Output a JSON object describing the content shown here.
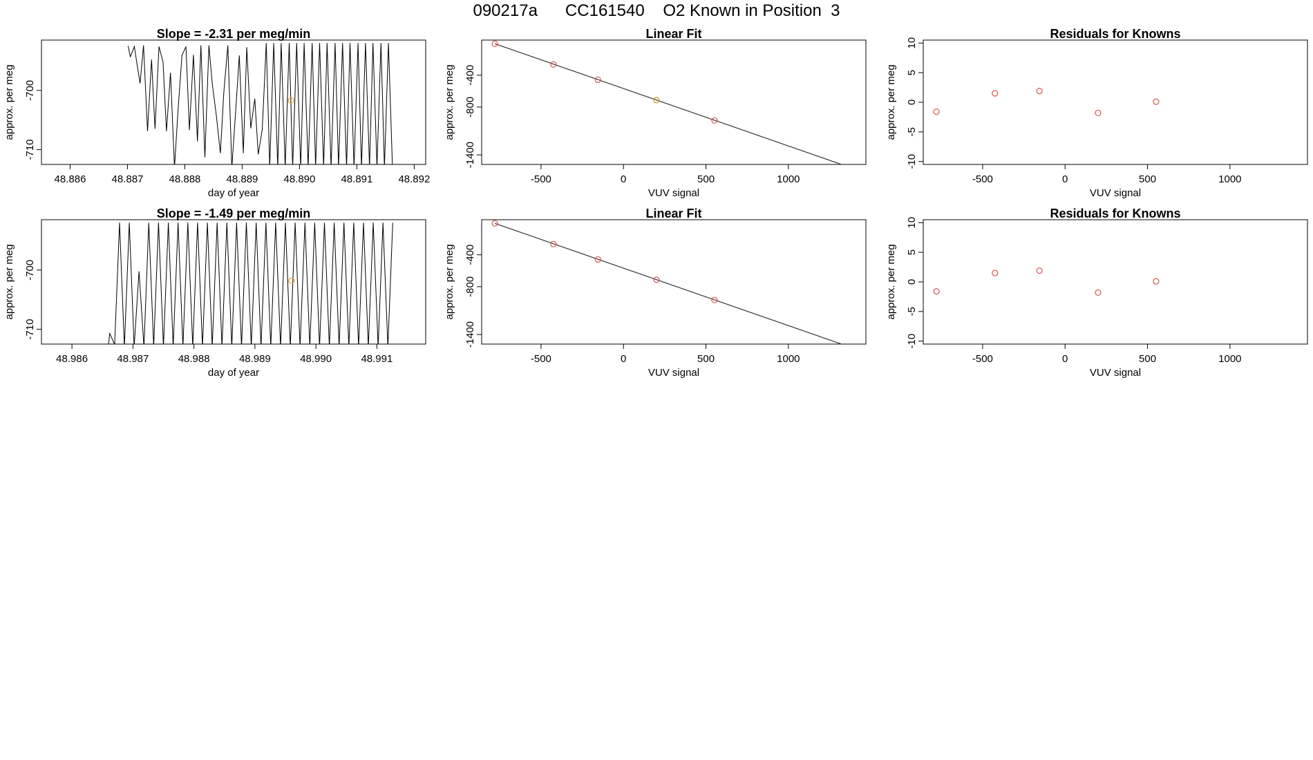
{
  "page": {
    "title": "090217a      CC161540    O2 Known in Position  3"
  },
  "chart_data": [
    {
      "type": "line",
      "title": "Slope =  -2.31  per meg/min",
      "xlabel": "day of year",
      "ylabel": "approx. per meg",
      "xlim": [
        48.8855,
        48.8922
      ],
      "ylim": [
        -712.5,
        -691.5
      ],
      "xticks": [
        48.886,
        48.887,
        48.888,
        48.889,
        48.89,
        48.891,
        48.892
      ],
      "xtick_labels": [
        "48.886",
        "48.887",
        "48.888",
        "48.889",
        "48.890",
        "48.891",
        "48.892"
      ],
      "yticks": [
        -700,
        -710
      ],
      "ytick_labels": [
        "-700",
        "-710"
      ],
      "series": [
        {
          "color": "#000000",
          "x": [
            48.88701,
            48.88705,
            48.88712,
            48.88718,
            48.88722,
            48.88728,
            48.88735,
            48.88742,
            48.88748,
            48.88755,
            48.88762,
            48.88768,
            48.88775,
            48.88782,
            48.88788,
            48.88795,
            48.88802,
            48.88808,
            48.88815,
            48.88822,
            48.88828,
            48.88835,
            48.88842,
            48.88848,
            48.88855,
            48.88862,
            48.88868,
            48.88875,
            48.88882,
            48.88888,
            48.88895,
            48.88902,
            48.88908,
            48.88915,
            48.88922,
            48.88928,
            48.88935,
            48.88942,
            48.88948,
            48.88955,
            48.88962,
            48.88968,
            48.88975,
            48.88982,
            48.88988,
            48.88995,
            48.89002,
            48.89008,
            48.89015,
            48.89022,
            48.89028,
            48.89035,
            48.89042,
            48.89048,
            48.89055,
            48.89062,
            48.89068,
            48.89075,
            48.89082,
            48.89088,
            48.89095,
            48.89102,
            48.89108,
            48.89115,
            48.89122,
            48.89128,
            48.89135,
            48.89142,
            48.89148,
            48.89155,
            48.89162
          ],
          "y": [
            -692.5,
            -694.3,
            -692.6,
            -696.4,
            -698.8,
            -692.4,
            -706.9,
            -694.8,
            -706.5,
            -692.6,
            -695.2,
            -706.9,
            -697.0,
            -713.0,
            -703.6,
            -694.1,
            -692.6,
            -706.7,
            -694.0,
            -708.6,
            -692.4,
            -711.3,
            -692.4,
            -699.0,
            -704.3,
            -710.6,
            -700.3,
            -692.4,
            -713.0,
            -704.4,
            -694.1,
            -710.6,
            -692.7,
            -706.4,
            -701.4,
            -710.8,
            -706.6,
            -692.0,
            -713.0,
            -692.0,
            -713.0,
            -692.0,
            -713.0,
            -692.0,
            -713.0,
            -692.0,
            -713.0,
            -692.0,
            -713.0,
            -692.0,
            -713.0,
            -692.0,
            -713.0,
            -692.0,
            -713.0,
            -692.0,
            -713.0,
            -692.0,
            -713.0,
            -692.0,
            -713.0,
            -692.0,
            -713.0,
            -692.0,
            -713.0,
            -692.0,
            -713.0,
            -692.0,
            -713.0,
            -692.0,
            -713.0
          ]
        }
      ],
      "marker": {
        "x": 48.88985,
        "y": -701.7,
        "color": "#e8a33a"
      }
    },
    {
      "type": "scatter",
      "title": "Linear Fit",
      "xlabel": "VUV signal",
      "ylabel": "approx. per meg",
      "xlim": [
        -860,
        1470
      ],
      "ylim": [
        -1520,
        40
      ],
      "xticks": [
        -500,
        0,
        500,
        1000
      ],
      "xtick_labels": [
        "-500",
        "0",
        "500",
        "1000"
      ],
      "yticks": [
        -400,
        -800,
        -1400
      ],
      "ytick_labels": [
        "-400",
        "-800",
        "-1400"
      ],
      "points": [
        {
          "x": -780,
          "y": -6,
          "color": "#d9534f"
        },
        {
          "x": -425,
          "y": -266,
          "color": "#d9534f"
        },
        {
          "x": -155,
          "y": -458,
          "color": "#d9534f"
        },
        {
          "x": 200,
          "y": -713,
          "color": "#c89a2e"
        },
        {
          "x": 552,
          "y": -968,
          "color": "#d9534f"
        }
      ],
      "fit_line": {
        "x": [
          -780,
          1380
        ],
        "y": [
          -6,
          -1562
        ],
        "color": "#333333"
      }
    },
    {
      "type": "scatter",
      "title": "Residuals for Knowns",
      "xlabel": "VUV signal",
      "ylabel": "approx. per meg",
      "xlim": [
        -860,
        1470
      ],
      "ylim": [
        -10.5,
        10.5
      ],
      "xticks": [
        -500,
        0,
        500,
        1000
      ],
      "xtick_labels": [
        "-500",
        "0",
        "500",
        "1000"
      ],
      "yticks": [
        10,
        5,
        0,
        -5,
        -10
      ],
      "ytick_labels": [
        "10",
        "5",
        "0",
        "-5",
        "-10"
      ],
      "points": [
        {
          "x": -780,
          "y": -1.6,
          "color": "#d9534f"
        },
        {
          "x": -425,
          "y": 1.5,
          "color": "#d9534f"
        },
        {
          "x": -155,
          "y": 1.9,
          "color": "#d9534f"
        },
        {
          "x": 200,
          "y": -1.8,
          "color": "#d9534f"
        },
        {
          "x": 552,
          "y": 0.1,
          "color": "#d9534f"
        }
      ]
    },
    {
      "type": "line",
      "title": "Slope =  -1.49  per meg/min",
      "xlabel": "day of year",
      "ylabel": "approx. per meg",
      "xlim": [
        48.9855,
        48.9918
      ],
      "ylim": [
        -712.5,
        -691.5
      ],
      "xticks": [
        48.986,
        48.987,
        48.988,
        48.989,
        48.99,
        48.991
      ],
      "xtick_labels": [
        "48.986",
        "48.987",
        "48.988",
        "48.989",
        "48.990",
        "48.991"
      ],
      "yticks": [
        -700,
        -710
      ],
      "ytick_labels": [
        "-700",
        "-710"
      ],
      "series": [
        {
          "color": "#000000",
          "x": [
            48.9862,
            48.9866,
            48.98662,
            48.9867,
            48.98678,
            48.98686,
            48.98694,
            48.98702,
            48.9871,
            48.98718,
            48.98726,
            48.98734,
            48.98742,
            48.9875,
            48.98758,
            48.98766,
            48.98774,
            48.98782,
            48.9879,
            48.98798,
            48.98806,
            48.98814,
            48.98822,
            48.9883,
            48.98838,
            48.98846,
            48.98854,
            48.98862,
            48.9887,
            48.98878,
            48.98886,
            48.98894,
            48.98902,
            48.9891,
            48.98918,
            48.98926,
            48.98934,
            48.98942,
            48.9895,
            48.98958,
            48.98966,
            48.98974,
            48.98982,
            48.9899,
            48.98998,
            48.99006,
            48.99014,
            48.99022,
            48.9903,
            48.99038,
            48.99046,
            48.99054,
            48.99062,
            48.9907,
            48.99078,
            48.99086,
            48.99094,
            48.99102,
            48.9911,
            48.99118,
            48.99126
          ],
          "y": [
            -712.5,
            -712.5,
            -710.7,
            -712.6,
            -692.0,
            -713.0,
            -692.0,
            -713.0,
            -700.2,
            -713.0,
            -692.0,
            -713.0,
            -692.0,
            -713.0,
            -692.0,
            -713.0,
            -692.0,
            -713.0,
            -692.0,
            -713.0,
            -692.0,
            -713.0,
            -692.0,
            -713.0,
            -692.0,
            -713.0,
            -692.0,
            -713.0,
            -692.0,
            -713.0,
            -692.0,
            -713.0,
            -692.0,
            -713.0,
            -692.0,
            -713.0,
            -692.0,
            -713.0,
            -692.0,
            -713.0,
            -692.0,
            -713.0,
            -692.0,
            -713.0,
            -692.0,
            -713.0,
            -692.0,
            -713.0,
            -692.0,
            -713.0,
            -692.0,
            -713.0,
            -692.0,
            -713.0,
            -692.0,
            -713.0,
            -692.0,
            -713.0,
            -692.0,
            -713.0,
            -692.0
          ]
        }
      ],
      "marker": {
        "x": 48.9896,
        "y": -701.8,
        "color": "#e8a33a"
      }
    },
    {
      "type": "scatter",
      "title": "Linear Fit",
      "xlabel": "VUV signal",
      "ylabel": "approx. per meg",
      "xlim": [
        -860,
        1470
      ],
      "ylim": [
        -1520,
        40
      ],
      "xticks": [
        -500,
        0,
        500,
        1000
      ],
      "xtick_labels": [
        "-500",
        "0",
        "500",
        "1000"
      ],
      "yticks": [
        -400,
        -800,
        -1400
      ],
      "ytick_labels": [
        "-400",
        "-800",
        "-1400"
      ],
      "points": [
        {
          "x": -780,
          "y": -6,
          "color": "#d9534f"
        },
        {
          "x": -425,
          "y": -266,
          "color": "#d9534f"
        },
        {
          "x": -155,
          "y": -458,
          "color": "#d9534f"
        },
        {
          "x": 200,
          "y": -713,
          "color": "#d9534f"
        },
        {
          "x": 552,
          "y": -968,
          "color": "#d9534f"
        }
      ],
      "fit_line": {
        "x": [
          -780,
          1380
        ],
        "y": [
          -6,
          -1562
        ],
        "color": "#333333"
      }
    },
    {
      "type": "scatter",
      "title": "Residuals for Knowns",
      "xlabel": "VUV signal",
      "ylabel": "approx. per meg",
      "xlim": [
        -860,
        1470
      ],
      "ylim": [
        -10.5,
        10.5
      ],
      "xticks": [
        -500,
        0,
        500,
        1000
      ],
      "xtick_labels": [
        "-500",
        "0",
        "500",
        "1000"
      ],
      "yticks": [
        10,
        5,
        0,
        -5,
        -10
      ],
      "ytick_labels": [
        "10",
        "5",
        "0",
        "-5",
        "-10"
      ],
      "points": [
        {
          "x": -780,
          "y": -1.6,
          "color": "#d9534f"
        },
        {
          "x": -425,
          "y": 1.5,
          "color": "#d9534f"
        },
        {
          "x": -155,
          "y": 1.9,
          "color": "#d9534f"
        },
        {
          "x": 200,
          "y": -1.8,
          "color": "#d9534f"
        },
        {
          "x": 552,
          "y": 0.1,
          "color": "#d9534f"
        }
      ]
    }
  ]
}
